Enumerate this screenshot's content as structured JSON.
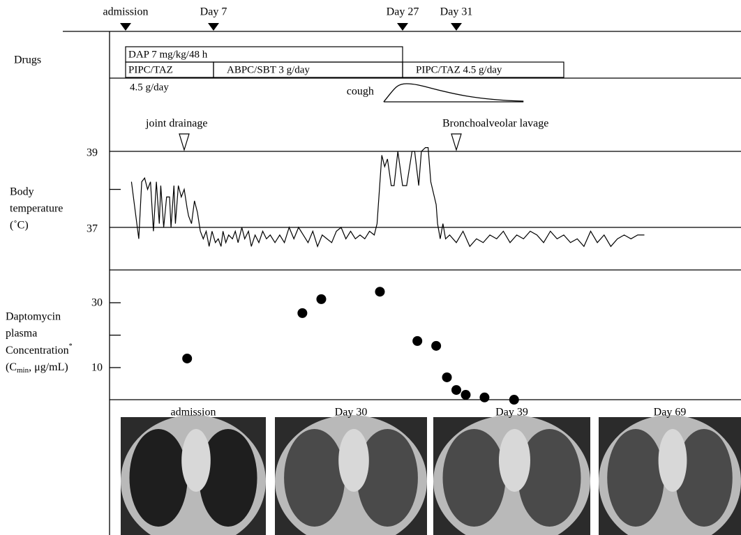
{
  "timeline": [
    {
      "label": "admission",
      "day": 1
    },
    {
      "label": "Day 7",
      "day": 7
    },
    {
      "label": "Day 27",
      "day": 27
    },
    {
      "label": "Day 31",
      "day": 31
    }
  ],
  "drugs": {
    "label": "Drugs",
    "bars": [
      {
        "label": "DAP 7 mg/kg/48 h",
        "start": 1,
        "end": 27,
        "row": 0
      },
      {
        "label": "PIPC/TAZ",
        "sublabel": "4.5 g/day",
        "start": 1,
        "end": 7,
        "row": 1
      },
      {
        "label": "ABPC/SBT 3 g/day",
        "start": 7,
        "end": 27,
        "row": 1
      },
      {
        "label": "PIPC/TAZ 4.5 g/day",
        "start": 27,
        "end": 39,
        "row": 1
      }
    ]
  },
  "cough": {
    "label": "cough",
    "start": 25,
    "peak": 27.3,
    "end": 36
  },
  "temperature": {
    "label_lines": [
      "Body",
      "temperature",
      "(˚C)"
    ],
    "events": [
      {
        "label": "joint drainage",
        "day": 5
      },
      {
        "label": "Bronchoalveolar lavage",
        "day": 31
      }
    ],
    "ylim": [
      35.9,
      40
    ],
    "yticks": [
      37,
      39
    ],
    "yminor_ticks": [
      38
    ],
    "x": [
      1.4,
      1.9,
      2.1,
      2.3,
      2.5,
      2.7,
      2.9,
      3.1,
      3.3,
      3.4,
      3.6,
      3.8,
      4.0,
      4.1,
      4.3,
      4.4,
      4.6,
      4.8,
      5.0,
      5.2,
      5.3,
      5.5,
      5.7,
      5.9,
      6.1,
      6.3,
      6.5,
      6.7,
      6.9,
      7.2,
      7.5,
      7.8,
      8.0,
      8.3,
      8.6,
      9.0,
      9.3,
      9.6,
      10.0,
      10.3,
      10.7,
      11.0,
      11.4,
      11.8,
      12.2,
      12.6,
      13.0,
      13.5,
      14.0,
      14.5,
      15.0,
      15.5,
      16.0,
      16.5,
      17.0,
      17.5,
      18.0,
      18.5,
      19.0,
      19.5,
      20.0,
      20.5,
      21.0,
      21.5,
      22.0,
      22.5,
      23.0,
      23.5,
      24.0,
      24.3,
      24.8,
      25.1,
      25.4,
      25.8,
      26.1,
      26.5,
      27.0,
      27.3,
      27.7,
      27.9,
      28.2,
      28.4,
      28.7,
      28.9,
      29.1,
      29.5,
      29.6,
      29.8,
      30.0,
      30.2,
      30.5,
      31.0,
      31.5,
      32.0,
      32.5,
      33.0,
      33.5,
      34.0,
      34.5,
      35.0,
      35.5,
      36.0,
      36.5,
      37.0,
      37.5,
      38.0,
      38.5,
      39.0,
      39.5,
      40.0,
      40.5,
      41.0,
      41.5,
      42.0,
      42.5,
      43.0,
      43.5,
      44.0,
      44.5,
      45.0
    ],
    "values": [
      38.2,
      36.7,
      38.2,
      38.3,
      38.0,
      38.2,
      36.9,
      38.2,
      37.1,
      38.1,
      37.0,
      37.8,
      37.8,
      37.0,
      38.1,
      37.1,
      38.1,
      37.8,
      38.0,
      37.5,
      37.3,
      37.1,
      37.7,
      37.4,
      36.9,
      36.7,
      36.9,
      36.5,
      36.9,
      36.6,
      36.7,
      36.5,
      36.9,
      36.6,
      36.8,
      36.7,
      36.9,
      36.6,
      37.0,
      36.7,
      36.9,
      36.5,
      36.8,
      36.6,
      36.9,
      36.7,
      36.8,
      36.6,
      36.8,
      36.6,
      37.0,
      36.7,
      37.0,
      36.8,
      36.6,
      36.9,
      36.5,
      36.8,
      36.7,
      36.6,
      36.9,
      37.0,
      36.7,
      36.9,
      36.7,
      36.8,
      36.7,
      36.9,
      36.8,
      37.1,
      38.9,
      38.6,
      38.8,
      38.1,
      38.1,
      39.0,
      38.1,
      38.1,
      39.0,
      39.0,
      38.1,
      39.0,
      39.1,
      39.1,
      38.2,
      37.6,
      37.1,
      36.7,
      37.1,
      36.7,
      36.8,
      36.6,
      36.9,
      36.5,
      36.7,
      36.6,
      36.8,
      36.7,
      36.9,
      36.6,
      36.8,
      36.7,
      36.9,
      36.8,
      36.6,
      36.9,
      36.7,
      36.8,
      36.6,
      36.7,
      36.5,
      36.9,
      36.6,
      36.8,
      36.5,
      36.7,
      36.8,
      36.7,
      36.8,
      36.8
    ]
  },
  "concentration": {
    "label_lines": [
      "Daptomycin",
      "plasma"
    ],
    "label_line3": {
      "text": "Concentration",
      "sup": "*"
    },
    "label_line4": {
      "pre": "(C",
      "sub": "min",
      "post": ", μg/mL)"
    },
    "ylim": [
      0,
      40
    ],
    "yticks": [
      10,
      30
    ],
    "yminor_ticks": [
      20
    ],
    "x": [
      5.2,
      16.4,
      18.4,
      24.6,
      28.1,
      29.5,
      30.3,
      31.0,
      31.7,
      33.1,
      35.3
    ],
    "values": [
      12.8,
      26.8,
      31.1,
      33.4,
      18.2,
      16.7,
      7.0,
      3.1,
      1.6,
      0.8,
      0.1
    ]
  },
  "ct": {
    "labels": [
      "admission",
      "Day 30",
      "Day 39",
      "Day 69"
    ]
  }
}
